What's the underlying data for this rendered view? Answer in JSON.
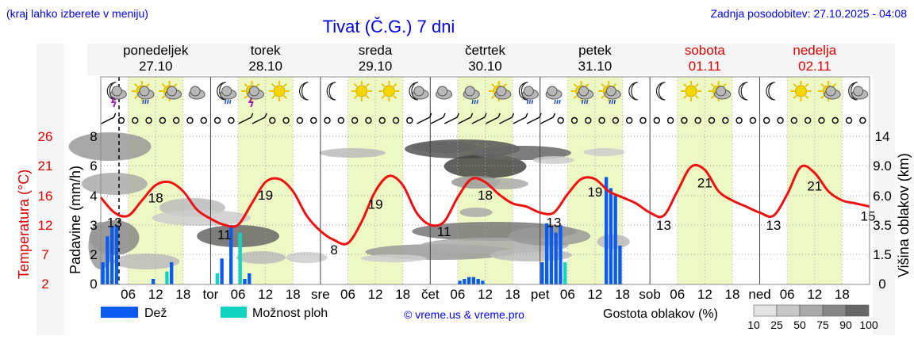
{
  "header": {
    "menu_hint": "(kraj lahko izberete v meniju)",
    "title": "Tivat (Č.G.) 7 dni",
    "updated": "Zadnja posodobitev: 27.10.2025 - 04:08"
  },
  "days": [
    {
      "name": "ponedeljek",
      "date": "27.10",
      "weekend": false
    },
    {
      "name": "torek",
      "date": "28.10",
      "weekend": false
    },
    {
      "name": "sreda",
      "date": "29.10",
      "weekend": false
    },
    {
      "name": "četrtek",
      "date": "30.10",
      "weekend": false
    },
    {
      "name": "petek",
      "date": "31.10",
      "weekend": false
    },
    {
      "name": "sobota",
      "date": "01.11",
      "weekend": true
    },
    {
      "name": "nedelja",
      "date": "02.11",
      "weekend": true
    }
  ],
  "axes": {
    "temp_label": "Temperatura (°C)",
    "temp_ticks": [
      "26",
      "21",
      "16",
      "12",
      "7",
      "2"
    ],
    "precip_label": "Padavine (mm/h)",
    "precip_ticks": [
      "8",
      "6",
      "4",
      "3",
      "2",
      "0"
    ],
    "cloud_label": "Višina oblakov (km)",
    "cloud_ticks": [
      "14",
      "9.0",
      "6.0",
      "3.5",
      "1.5",
      "0"
    ],
    "x_ticks": [
      "06",
      "12",
      "18",
      "tor",
      "06",
      "12",
      "18",
      "sre",
      "06",
      "12",
      "18",
      "čet",
      "06",
      "12",
      "18",
      "pet",
      "06",
      "12",
      "18",
      "sob",
      "06",
      "12",
      "18",
      "ned",
      "06",
      "12",
      "18"
    ]
  },
  "legend": {
    "rain": "Dež",
    "shower": "Možnost ploh",
    "credit": "© vreme.us & vreme.pro",
    "density_label": "Gostota oblakov (%)",
    "density_ticks": [
      "10",
      "25",
      "50",
      "75",
      "90",
      "100"
    ]
  },
  "colors": {
    "temperature": "#ee1111",
    "rain": "#0a5cf0",
    "shower": "#11d4c0",
    "daylight": "#eef8c4",
    "link": "#0000ee",
    "weekend": "#dd0000"
  },
  "icons": [
    "moon-storm-icon",
    "sun-rain-icon",
    "sun-cloud-icon",
    "cloud-icon",
    "moon-rain-icon",
    "sun-storm-icon",
    "sun-icon",
    "moon-icon",
    "moon-icon",
    "sun-icon",
    "sun-icon",
    "moon-cloud-icon",
    "cloud-icon",
    "cloud-rain-icon",
    "sun-cloud-icon",
    "moon-rain-icon",
    "cloud-rain-icon",
    "sun-rain-icon",
    "sun-rain-icon",
    "moon-icon",
    "moon-icon",
    "sun-icon",
    "sun-cloud-icon",
    "moon-icon",
    "moon-icon",
    "sun-icon",
    "sun-cloud-icon",
    "moon-cloud-icon"
  ],
  "chart_data": {
    "type": "line",
    "x_unit": "hours since 27.10 00:00",
    "temperature": {
      "x": [
        0,
        3,
        6,
        9,
        12,
        15,
        18,
        21,
        24,
        27,
        30,
        33,
        36,
        39,
        42,
        45,
        48,
        51,
        54,
        57,
        60,
        63,
        66,
        69,
        72,
        75,
        78,
        81,
        84,
        87,
        90,
        93,
        96,
        99,
        102,
        105,
        108,
        111,
        114,
        117,
        120,
        123,
        126,
        129,
        132,
        135,
        138,
        141,
        144,
        147,
        150,
        153,
        156,
        159,
        162,
        165,
        168
      ],
      "y": [
        16,
        13.5,
        13,
        15.5,
        18,
        18.5,
        17,
        14,
        12.5,
        11.5,
        11.5,
        15,
        18.5,
        19,
        17,
        13,
        10.5,
        9,
        8.5,
        12,
        17,
        19.5,
        18,
        13.5,
        11.5,
        12,
        16,
        19,
        18.5,
        16.5,
        15,
        14.5,
        13.5,
        13.5,
        16.5,
        19,
        19,
        17,
        16,
        15,
        13.5,
        13,
        17,
        21,
        20.5,
        17,
        15.5,
        14.5,
        13.5,
        13,
        16.5,
        21,
        20,
        17,
        15.5,
        15,
        14.5
      ],
      "labels": [
        {
          "x": 3,
          "v": "13"
        },
        {
          "x": 12,
          "v": "18"
        },
        {
          "x": 27,
          "v": "11"
        },
        {
          "x": 36,
          "v": "19"
        },
        {
          "x": 51,
          "v": "8"
        },
        {
          "x": 60,
          "v": "19"
        },
        {
          "x": 75,
          "v": "11"
        },
        {
          "x": 84,
          "v": "18"
        },
        {
          "x": 99,
          "v": "13"
        },
        {
          "x": 108,
          "v": "19"
        },
        {
          "x": 123,
          "v": "13"
        },
        {
          "x": 132,
          "v": "21"
        },
        {
          "x": 147,
          "v": "13"
        },
        {
          "x": 156,
          "v": "21"
        },
        {
          "x": 168,
          "v": "15"
        }
      ],
      "ylim": [
        2,
        26
      ]
    },
    "rain": {
      "x": [
        0,
        1,
        2,
        3,
        11,
        15,
        26,
        28,
        31,
        32,
        78,
        79,
        80,
        81,
        82,
        83,
        96,
        97,
        98,
        99,
        100,
        110,
        111,
        112,
        113
      ],
      "y": [
        1.2,
        2.6,
        3.1,
        3.2,
        0.3,
        1.2,
        1.4,
        3.2,
        0.3,
        0.6,
        0.2,
        0.3,
        0.4,
        0.4,
        0.3,
        0.2,
        1.2,
        3.3,
        3.1,
        2.8,
        3.2,
        5.8,
        5.2,
        4.8,
        2.1
      ],
      "ylim": [
        0,
        8
      ]
    },
    "shower": {
      "x": [
        0,
        1,
        14,
        25,
        30,
        96,
        97,
        100,
        101
      ],
      "y": [
        1.0,
        0.6,
        0.7,
        0.6,
        2.8,
        1.0,
        0.7,
        0.7,
        1.2
      ],
      "ylim": [
        0,
        8
      ]
    },
    "cloud_height_ylim": [
      0,
      14
    ]
  }
}
